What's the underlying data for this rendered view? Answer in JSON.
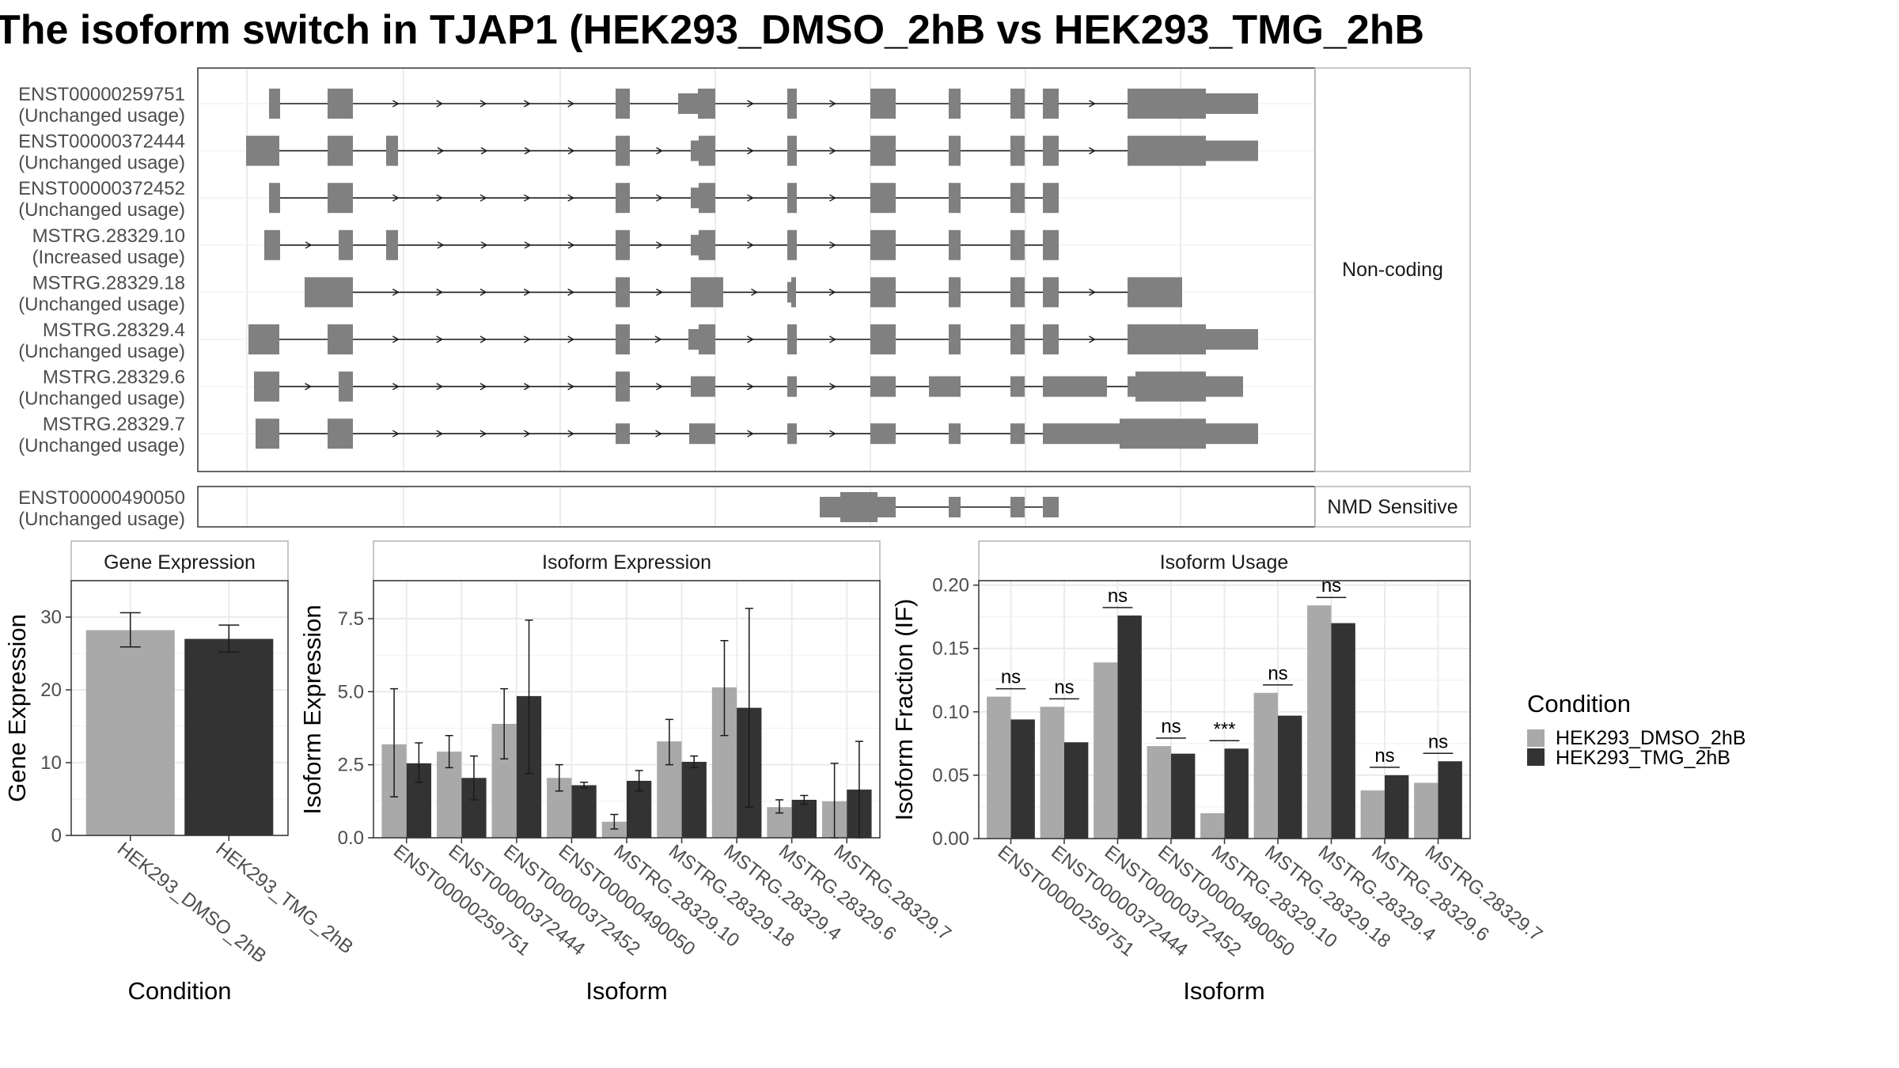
{
  "title": "The isoform switch in TJAP1 (HEK293_DMSO_2hB vs HEK293_TMG_2hB",
  "colors": {
    "dmso": "#a9a9a9",
    "tmg": "#333333",
    "transcript": "#808080",
    "grid": "#ebebeb",
    "panel_border": "#333333"
  },
  "transcripts": {
    "groups": [
      {
        "label": "Non-coding",
        "items": [
          {
            "id": "ENST00000259751",
            "usage": "(Unchanged usage)"
          },
          {
            "id": "ENST00000372444",
            "usage": "(Unchanged usage)"
          },
          {
            "id": "ENST00000372452",
            "usage": "(Unchanged usage)"
          },
          {
            "id": "MSTRG.28329.10",
            "usage": "(Increased usage)"
          },
          {
            "id": "MSTRG.28329.18",
            "usage": "(Unchanged usage)"
          },
          {
            "id": "MSTRG.28329.4",
            "usage": "(Unchanged usage)"
          },
          {
            "id": "MSTRG.28329.6",
            "usage": "(Unchanged usage)"
          },
          {
            "id": "MSTRG.28329.7",
            "usage": "(Unchanged usage)"
          }
        ]
      },
      {
        "label": "NMD Sensitive",
        "items": [
          {
            "id": "ENST00000490050",
            "usage": "(Unchanged usage)"
          }
        ]
      }
    ]
  },
  "legend": {
    "title": "Condition",
    "entries": [
      "HEK293_DMSO_2hB",
      "HEK293_TMG_2hB"
    ]
  },
  "chart_data": [
    {
      "type": "bar",
      "panel": "Gene Expression",
      "xlabel": "Condition",
      "ylabel": "Gene Expression",
      "categories": [
        "HEK293_DMSO_2hB",
        "HEK293_TMG_2hB"
      ],
      "values": [
        28.2,
        27.0
      ],
      "error_low": [
        25.9,
        25.2
      ],
      "error_high": [
        30.6,
        28.9
      ],
      "ylim": [
        0,
        35
      ],
      "yticks": [
        0,
        10,
        20,
        30
      ]
    },
    {
      "type": "bar",
      "panel": "Isoform Expression",
      "xlabel": "Isoform",
      "ylabel": "Isoform Expression",
      "categories": [
        "ENST00000259751",
        "ENST00000372444",
        "ENST00000372452",
        "ENST00000490050",
        "MSTRG.28329.10",
        "MSTRG.28329.18",
        "MSTRG.28329.4",
        "MSTRG.28329.6",
        "MSTRG.28329.7"
      ],
      "ylim": [
        0,
        8.8
      ],
      "yticks": [
        0.0,
        2.5,
        5.0,
        7.5
      ],
      "ytick_labels": [
        "0.0",
        "2.5",
        "5.0",
        "7.5"
      ],
      "series": [
        {
          "name": "HEK293_DMSO_2hB",
          "values": [
            3.2,
            2.95,
            3.9,
            2.05,
            0.55,
            3.3,
            5.15,
            1.05,
            1.25
          ],
          "error_low": [
            1.4,
            2.4,
            2.7,
            1.6,
            0.3,
            2.5,
            3.5,
            0.85,
            0.0
          ],
          "error_high": [
            5.1,
            3.5,
            5.1,
            2.5,
            0.8,
            4.05,
            6.75,
            1.3,
            2.55
          ]
        },
        {
          "name": "HEK293_TMG_2hB",
          "values": [
            2.55,
            2.05,
            4.85,
            1.8,
            1.95,
            2.6,
            4.45,
            1.3,
            1.65
          ],
          "error_low": [
            1.9,
            1.3,
            2.2,
            1.7,
            1.6,
            2.4,
            1.05,
            1.15,
            0.0
          ],
          "error_high": [
            3.25,
            2.8,
            7.45,
            1.9,
            2.3,
            2.8,
            7.85,
            1.45,
            3.3
          ]
        }
      ]
    },
    {
      "type": "bar",
      "panel": "Isoform Usage",
      "xlabel": "Isoform",
      "ylabel": "Isoform Fraction (IF)",
      "categories": [
        "ENST00000259751",
        "ENST00000372444",
        "ENST00000372452",
        "ENST00000490050",
        "MSTRG.28329.10",
        "MSTRG.28329.18",
        "MSTRG.28329.4",
        "MSTRG.28329.6",
        "MSTRG.28329.7"
      ],
      "ylim": [
        0,
        0.2035
      ],
      "yticks": [
        0.0,
        0.05,
        0.1,
        0.15,
        0.2
      ],
      "ytick_labels": [
        "0.00",
        "0.05",
        "0.10",
        "0.15",
        "0.20"
      ],
      "series": [
        {
          "name": "HEK293_DMSO_2hB",
          "values": [
            0.112,
            0.104,
            0.139,
            0.073,
            0.02,
            0.115,
            0.184,
            0.038,
            0.044
          ]
        },
        {
          "name": "HEK293_TMG_2hB",
          "values": [
            0.094,
            0.076,
            0.176,
            0.067,
            0.071,
            0.097,
            0.17,
            0.05,
            0.061
          ]
        }
      ],
      "significance": [
        "ns",
        "ns",
        "ns",
        "ns",
        "***",
        "ns",
        "ns",
        "ns",
        "ns"
      ]
    }
  ]
}
